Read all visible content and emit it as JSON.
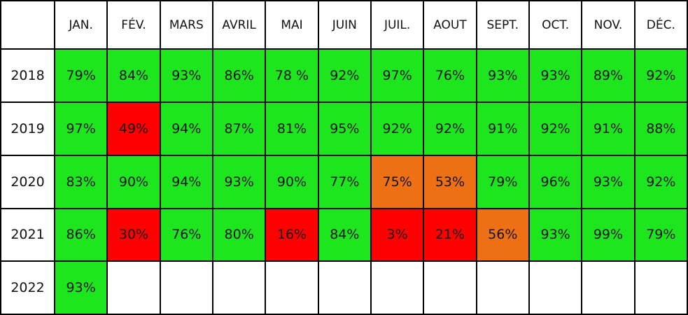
{
  "table": {
    "header": [
      "JAN.",
      "FÉV.",
      "MARS",
      "AVRIL",
      "MAI",
      "JUIN",
      "JUIL.",
      "AOUT",
      "SEPT.",
      "OCT.",
      "NOV.",
      "DÉC."
    ],
    "rows": [
      {
        "year": "2018",
        "cells": [
          {
            "text": "79%",
            "color": "#1ee61e"
          },
          {
            "text": "84%",
            "color": "#1ee61e"
          },
          {
            "text": "93%",
            "color": "#1ee61e"
          },
          {
            "text": "86%",
            "color": "#1ee61e"
          },
          {
            "text": "78 %",
            "color": "#1ee61e"
          },
          {
            "text": "92%",
            "color": "#1ee61e"
          },
          {
            "text": "97%",
            "color": "#1ee61e"
          },
          {
            "text": "76%",
            "color": "#1ee61e"
          },
          {
            "text": "93%",
            "color": "#1ee61e"
          },
          {
            "text": "93%",
            "color": "#1ee61e"
          },
          {
            "text": "89%",
            "color": "#1ee61e"
          },
          {
            "text": "92%",
            "color": "#1ee61e"
          }
        ]
      },
      {
        "year": "2019",
        "cells": [
          {
            "text": "97%",
            "color": "#1ee61e"
          },
          {
            "text": "49%",
            "color": "#ff0000"
          },
          {
            "text": "94%",
            "color": "#1ee61e"
          },
          {
            "text": "87%",
            "color": "#1ee61e"
          },
          {
            "text": "81%",
            "color": "#1ee61e"
          },
          {
            "text": "95%",
            "color": "#1ee61e"
          },
          {
            "text": "92%",
            "color": "#1ee61e"
          },
          {
            "text": "92%",
            "color": "#1ee61e"
          },
          {
            "text": "91%",
            "color": "#1ee61e"
          },
          {
            "text": "92%",
            "color": "#1ee61e"
          },
          {
            "text": "91%",
            "color": "#1ee61e"
          },
          {
            "text": "88%",
            "color": "#1ee61e"
          }
        ]
      },
      {
        "year": "2020",
        "cells": [
          {
            "text": "83%",
            "color": "#1ee61e"
          },
          {
            "text": "90%",
            "color": "#1ee61e"
          },
          {
            "text": "94%",
            "color": "#1ee61e"
          },
          {
            "text": "93%",
            "color": "#1ee61e"
          },
          {
            "text": "90%",
            "color": "#1ee61e"
          },
          {
            "text": "77%",
            "color": "#1ee61e"
          },
          {
            "text": "75%",
            "color": "#ee7015"
          },
          {
            "text": "53%",
            "color": "#ee7015"
          },
          {
            "text": "79%",
            "color": "#1ee61e"
          },
          {
            "text": "96%",
            "color": "#1ee61e"
          },
          {
            "text": "93%",
            "color": "#1ee61e"
          },
          {
            "text": "92%",
            "color": "#1ee61e"
          }
        ]
      },
      {
        "year": "2021",
        "cells": [
          {
            "text": "86%",
            "color": "#1ee61e"
          },
          {
            "text": "30%",
            "color": "#ff0000"
          },
          {
            "text": "76%",
            "color": "#1ee61e"
          },
          {
            "text": "80%",
            "color": "#1ee61e"
          },
          {
            "text": "16%",
            "color": "#ff0000"
          },
          {
            "text": "84%",
            "color": "#1ee61e"
          },
          {
            "text": "3%",
            "color": "#ff0000"
          },
          {
            "text": "21%",
            "color": "#ff0000"
          },
          {
            "text": "56%",
            "color": "#ee7015"
          },
          {
            "text": "93%",
            "color": "#1ee61e"
          },
          {
            "text": "99%",
            "color": "#1ee61e"
          },
          {
            "text": "79%",
            "color": "#1ee61e"
          }
        ]
      },
      {
        "year": "2022",
        "cells": [
          {
            "text": "93%",
            "color": "#1ee61e"
          }
        ]
      }
    ]
  }
}
